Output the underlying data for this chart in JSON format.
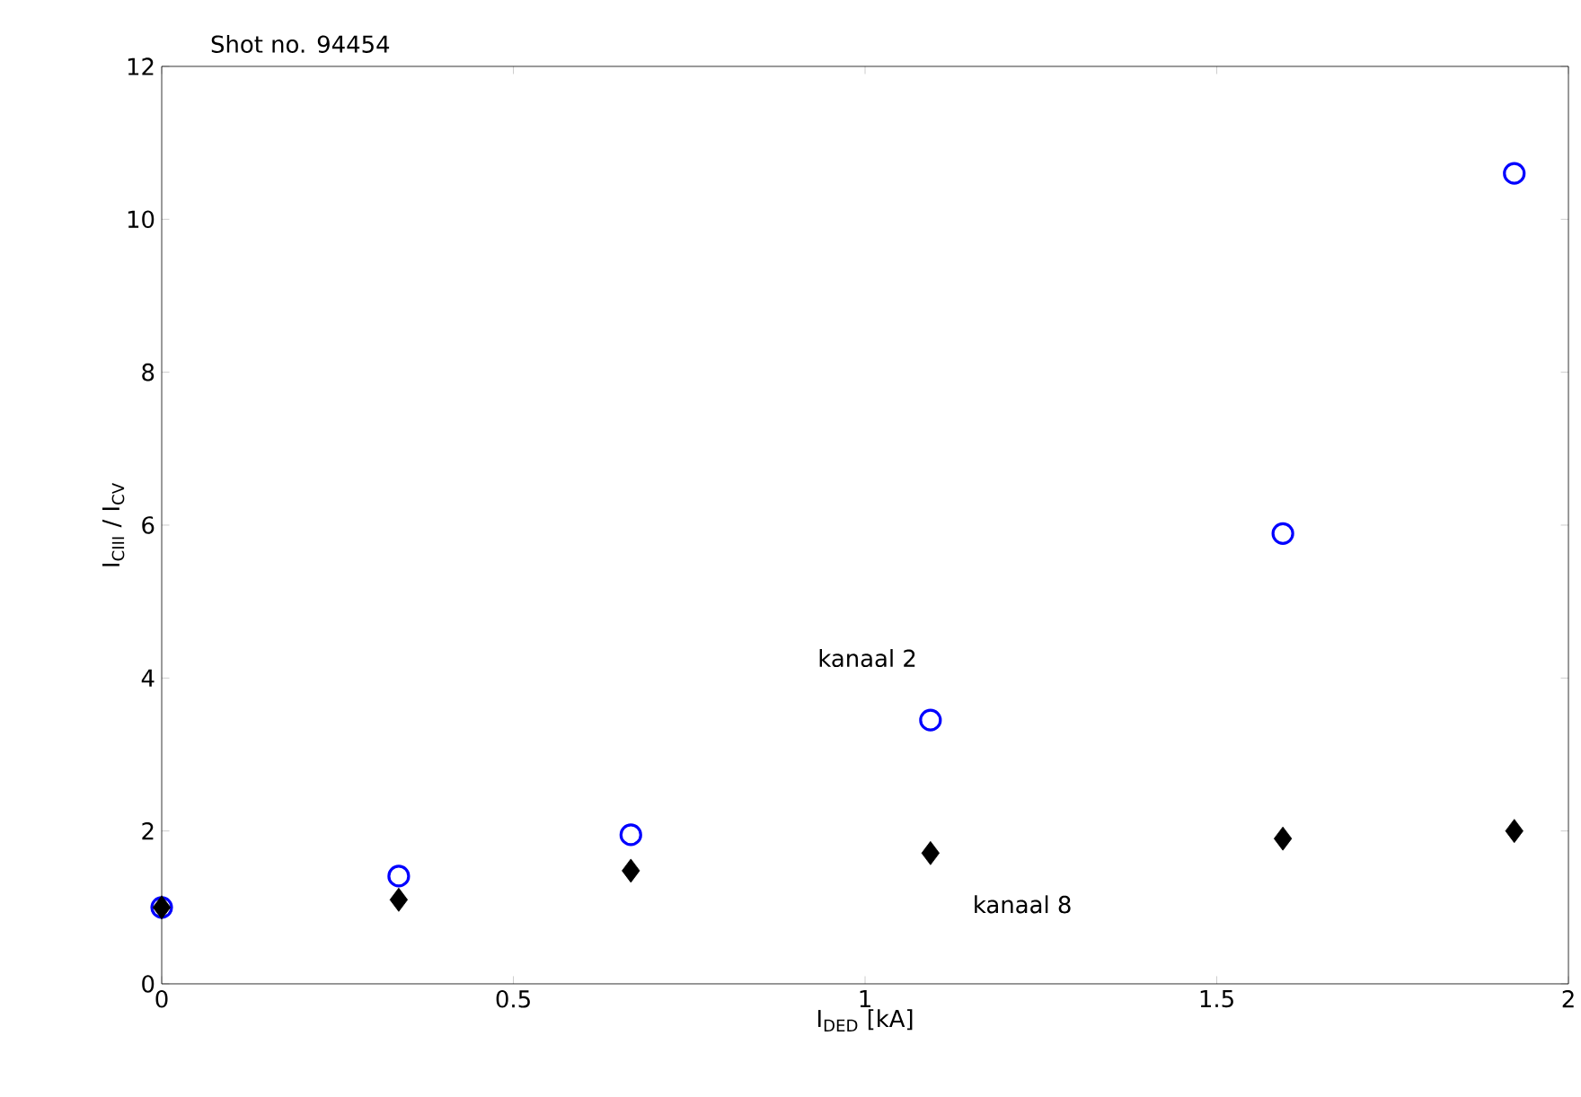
{
  "chart_data": {
    "type": "scatter",
    "title": "Shot no. 94454",
    "xlabel": "I$_{DED}$ [kA]",
    "ylabel": "I$_{CIII}$ / I$_{CV}$",
    "x": [
      0,
      0.337,
      0.667,
      1.093,
      1.594,
      1.923
    ],
    "series": [
      {
        "name": "kanaal 2",
        "color": "#0000ff",
        "marker": "circle",
        "values": [
          1.0,
          1.41,
          1.95,
          3.45,
          5.89,
          10.6
        ]
      },
      {
        "name": "kanaal 8",
        "color": "#000000",
        "marker": "diamond",
        "values": [
          1.0,
          1.1,
          1.48,
          1.71,
          1.9,
          2.0
        ]
      }
    ],
    "xlim": [
      0,
      2
    ],
    "ylim": [
      0,
      12
    ],
    "xticks": [
      0,
      0.5,
      1,
      1.5,
      2
    ],
    "yticks": [
      0,
      2,
      4,
      6,
      8,
      10,
      12
    ],
    "grid": false,
    "legend": false
  }
}
